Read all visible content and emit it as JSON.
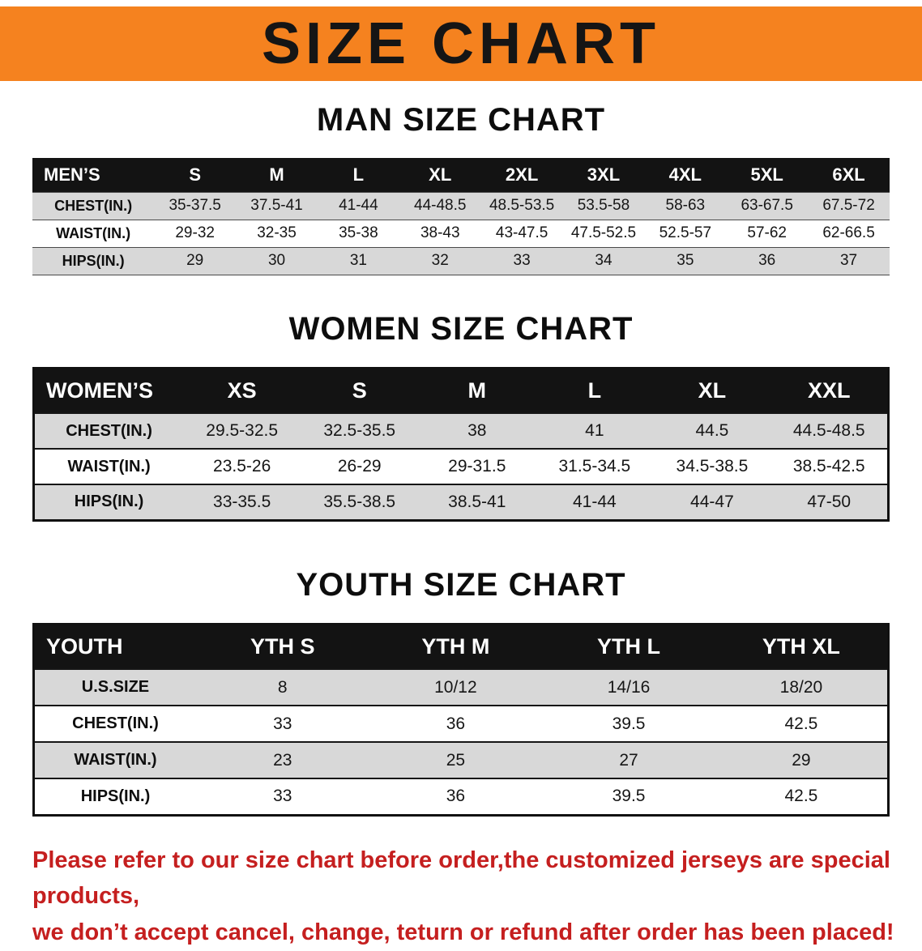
{
  "banner": {
    "title": "SIZE CHART",
    "background_color": "#f5821f",
    "text_color": "#151515"
  },
  "sections": [
    {
      "id": "men",
      "heading": "MAN SIZE CHART",
      "table": {
        "header": [
          "MEN’S",
          "S",
          "M",
          "L",
          "XL",
          "2XL",
          "3XL",
          "4XL",
          "5XL",
          "6XL"
        ],
        "rows": [
          {
            "label": "CHEST(IN.)",
            "values": [
              "35-37.5",
              "37.5-41",
              "41-44",
              "44-48.5",
              "48.5-53.5",
              "53.5-58",
              "58-63",
              "63-67.5",
              "67.5-72"
            ]
          },
          {
            "label": "WAIST(IN.)",
            "values": [
              "29-32",
              "32-35",
              "35-38",
              "38-43",
              "43-47.5",
              "47.5-52.5",
              "52.5-57",
              "57-62",
              "62-66.5"
            ]
          },
          {
            "label": "HIPS(IN.)",
            "values": [
              "29",
              "30",
              "31",
              "32",
              "33",
              "34",
              "35",
              "36",
              "37"
            ]
          }
        ]
      }
    },
    {
      "id": "women",
      "heading": "WOMEN SIZE CHART",
      "table": {
        "header": [
          "WOMEN’S",
          "XS",
          "S",
          "M",
          "L",
          "XL",
          "XXL"
        ],
        "rows": [
          {
            "label": "CHEST(IN.)",
            "values": [
              "29.5-32.5",
              "32.5-35.5",
              "38",
              "41",
              "44.5",
              "44.5-48.5"
            ]
          },
          {
            "label": "WAIST(IN.)",
            "values": [
              "23.5-26",
              "26-29",
              "29-31.5",
              "31.5-34.5",
              "34.5-38.5",
              "38.5-42.5"
            ]
          },
          {
            "label": "HIPS(IN.)",
            "values": [
              "33-35.5",
              "35.5-38.5",
              "38.5-41",
              "41-44",
              "44-47",
              "47-50"
            ]
          }
        ]
      }
    },
    {
      "id": "youth",
      "heading": "YOUTH SIZE CHART",
      "table": {
        "header": [
          "YOUTH",
          "YTH S",
          "YTH M",
          "YTH L",
          "YTH XL"
        ],
        "rows": [
          {
            "label": "U.S.SIZE",
            "values": [
              "8",
              "10/12",
              "14/16",
              "18/20"
            ]
          },
          {
            "label": "CHEST(IN.)",
            "values": [
              "33",
              "36",
              "39.5",
              "42.5"
            ]
          },
          {
            "label": "WAIST(IN.)",
            "values": [
              "23",
              "25",
              "27",
              "29"
            ]
          },
          {
            "label": "HIPS(IN.)",
            "values": [
              "33",
              "36",
              "39.5",
              "42.5"
            ]
          }
        ]
      }
    }
  ],
  "disclaimer": {
    "color": "#c51f1f",
    "lines": [
      "Please refer to our size chart before order,the customized jerseys are special products,",
      "we don’t accept cancel, change, teturn or refund after order has been placed!"
    ]
  }
}
